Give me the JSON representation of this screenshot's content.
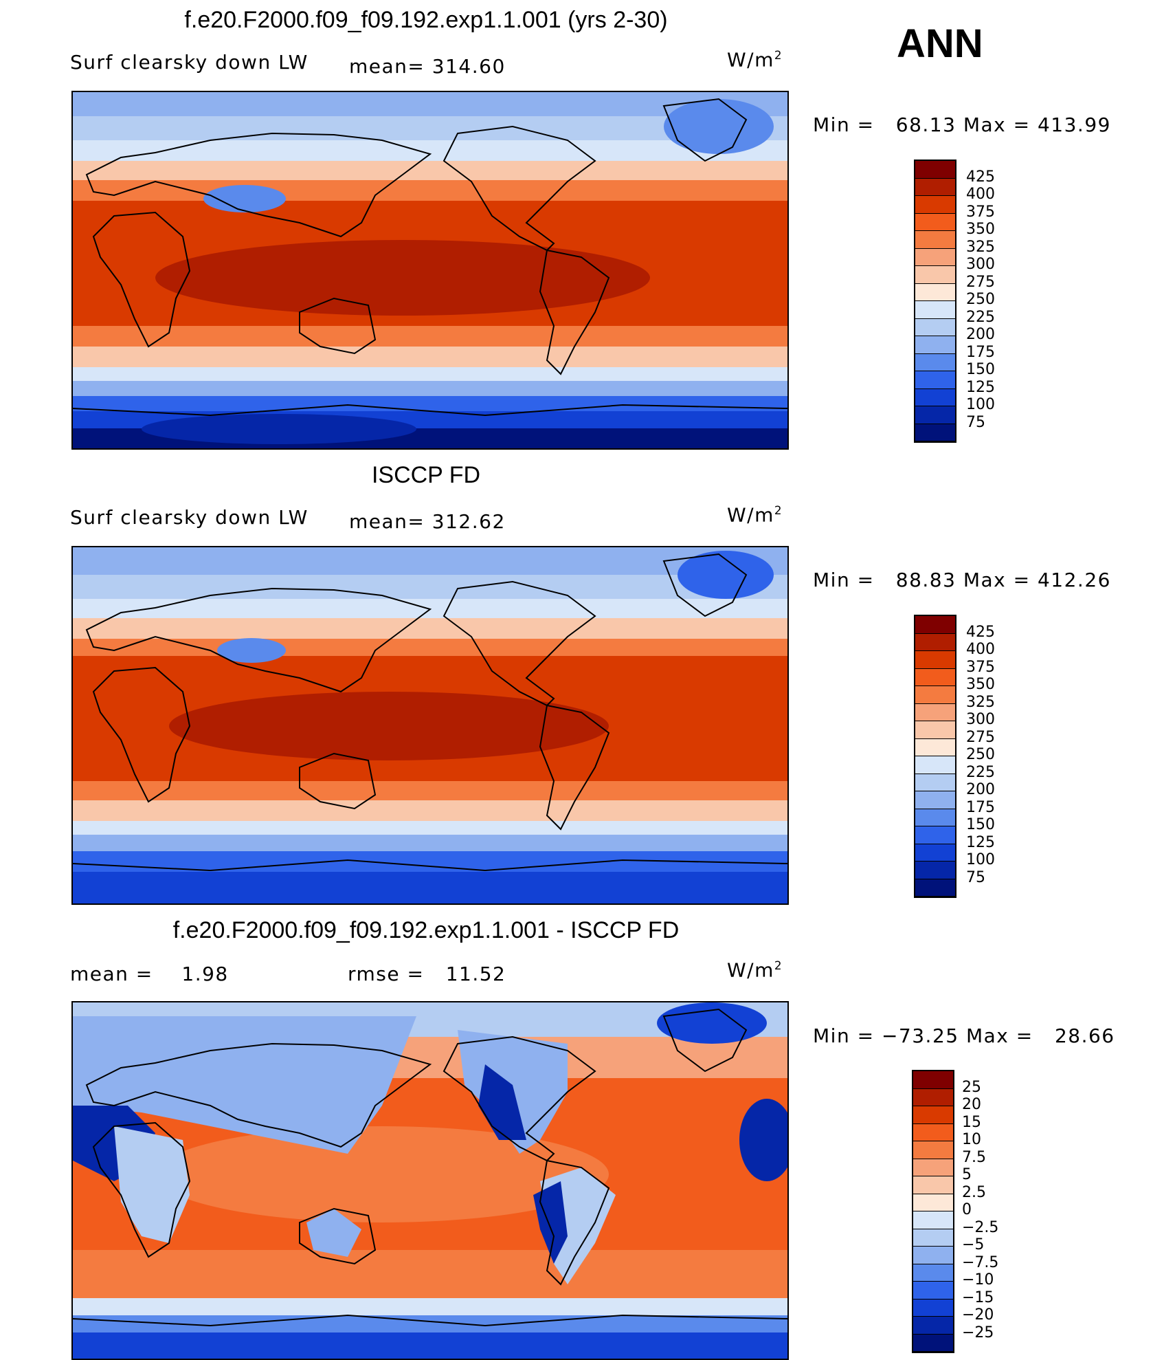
{
  "season": "ANN",
  "units_base": "W/m",
  "units_exp": "2",
  "panels": [
    {
      "title": "f.e20.F2000.f09_f09.192.exp1.1.001 (yrs 2-30)",
      "left_label": "Surf clearsky down LW",
      "stat_label": "mean=",
      "stat_value": "314.60",
      "minmax": {
        "min_label": "Min =",
        "min": "68.13",
        "max_label": "Max =",
        "max": "413.99"
      },
      "levels": [
        "425",
        "400",
        "375",
        "350",
        "325",
        "300",
        "275",
        "250",
        "225",
        "200",
        "175",
        "150",
        "125",
        "100",
        "75"
      ]
    },
    {
      "title": "ISCCP FD",
      "left_label": "Surf clearsky down LW",
      "stat_label": "mean=",
      "stat_value": "312.62",
      "minmax": {
        "min_label": "Min =",
        "min": "88.83",
        "max_label": "Max =",
        "max": "412.26"
      },
      "levels": [
        "425",
        "400",
        "375",
        "350",
        "325",
        "300",
        "275",
        "250",
        "225",
        "200",
        "175",
        "150",
        "125",
        "100",
        "75"
      ]
    },
    {
      "title": "f.e20.F2000.f09_f09.192.exp1.1.001 - ISCCP FD",
      "left_label": "mean =",
      "left_value": "1.98",
      "stat_label": "rmse =",
      "stat_value": "11.52",
      "minmax": {
        "min_label": "Min =",
        "min": "−73.25",
        "max_label": "Max =",
        "max": "28.66"
      },
      "levels": [
        "25",
        "20",
        "15",
        "10",
        "7.5",
        "5",
        "2.5",
        "0",
        "−2.5",
        "−5",
        "−7.5",
        "−10",
        "−15",
        "−20",
        "−25"
      ]
    }
  ],
  "colors": {
    "scale": [
      "#7f0000",
      "#b01e00",
      "#d93a00",
      "#f25c1c",
      "#f47b40",
      "#f6a27a",
      "#f9c7aa",
      "#fde8d8",
      "#d7e6f9",
      "#b4cdf2",
      "#8fb1ef",
      "#5a8aec",
      "#2f63ea",
      "#1241d4",
      "#0526a8",
      "#00127a"
    ],
    "continent": "#000000"
  }
}
